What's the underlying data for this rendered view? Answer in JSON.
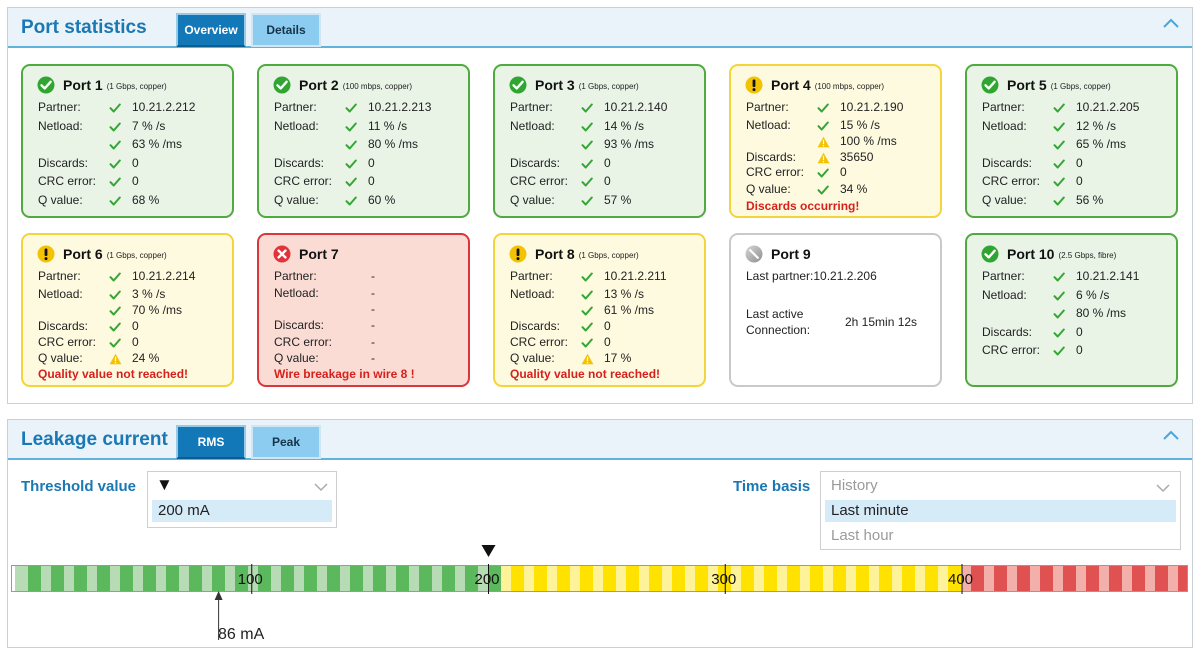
{
  "port_stats": {
    "title": "Port statistics",
    "tabs": [
      {
        "label": "Overview",
        "active": true
      },
      {
        "label": "Details",
        "active": false
      }
    ]
  },
  "labels": {
    "partner": "Partner:",
    "netload": "Netload:",
    "discards": "Discards:",
    "crc": "CRC error:",
    "q": "Q value:"
  },
  "ports": [
    {
      "name": "Port 1",
      "spec": "(1 Gbps, copper)",
      "status": "ok",
      "partner": "10.21.2.212",
      "netload_s": "7 % /s",
      "netload_ms": "63 % /ms",
      "discards": "0",
      "crc": "0",
      "q": "68 %"
    },
    {
      "name": "Port 2",
      "spec": "(100 mbps, copper)",
      "status": "ok",
      "partner": "10.21.2.213",
      "netload_s": "11 % /s",
      "netload_ms": "80 % /ms",
      "discards": "0",
      "crc": "0",
      "q": "60 %"
    },
    {
      "name": "Port 3",
      "spec": "(1 Gbps, copper)",
      "status": "ok",
      "partner": "10.21.2.140",
      "netload_s": "14 % /s",
      "netload_ms": "93 % /ms",
      "discards": "0",
      "crc": "0",
      "q": "57 %"
    },
    {
      "name": "Port 4",
      "spec": "(100 mbps, copper)",
      "status": "warn",
      "partner": "10.21.2.190",
      "netload_s": "15 % /s",
      "netload_ms": "100 % /ms",
      "discards": "35650",
      "crc": "0",
      "q": "34 %",
      "alert": "Discards occurring!"
    },
    {
      "name": "Port 5",
      "spec": "(1 Gbps, copper)",
      "status": "ok",
      "partner": "10.21.2.205",
      "netload_s": "12 % /s",
      "netload_ms": "65 % /ms",
      "discards": "0",
      "crc": "0",
      "q": "56 %"
    },
    {
      "name": "Port 6",
      "spec": "(1 Gbps, copper)",
      "status": "warn",
      "partner": "10.21.2.214",
      "netload_s": "3 % /s",
      "netload_ms": "70 % /ms",
      "discards": "0",
      "crc": "0",
      "q": "24 %",
      "alert": "Quality value not reached!"
    },
    {
      "name": "Port 7",
      "spec": "",
      "status": "err",
      "partner": "-",
      "netload_s": "-",
      "netload_ms": "-",
      "discards": "-",
      "crc": "-",
      "q": "-",
      "alert": "Wire breakage in wire 8 !"
    },
    {
      "name": "Port 8",
      "spec": "(1 Gbps, copper)",
      "status": "warn",
      "partner": "10.21.2.211",
      "netload_s": "13 % /s",
      "netload_ms": "61 % /ms",
      "discards": "0",
      "crc": "0",
      "q": "17 %",
      "alert": "Quality value not reached!"
    },
    {
      "name": "Port 9",
      "spec": "",
      "status": "off",
      "last_partner_label": "Last partner:",
      "last_partner": "10.21.2.206",
      "last_active_label_1": "Last active",
      "last_active_label_2": "Connection:",
      "last_active": "2h 15min 12s"
    },
    {
      "name": "Port 10",
      "spec": "(2.5 Gbps, fibre)",
      "status": "ok",
      "partner": "10.21.2.141",
      "netload_s": "6 % /s",
      "netload_ms": "80 % /ms",
      "discards": "0",
      "crc": "0"
    }
  ],
  "leakage": {
    "title": "Leakage current",
    "tabs": [
      {
        "label": "RMS",
        "active": true
      },
      {
        "label": "Peak",
        "active": false
      }
    ],
    "threshold_label": "Threshold value",
    "threshold_marker": "▼",
    "threshold_options": [
      "200 mA"
    ],
    "threshold_value_ma": 200,
    "time_basis_label": "Time basis",
    "time_basis_placeholder": "History",
    "time_basis_options": [
      "Last minute",
      "Last hour"
    ],
    "time_basis_selected": "Last minute",
    "current_value_ma": 86,
    "current_label": "86 mA",
    "scale_ticks": [
      "100",
      "200",
      "300",
      "400"
    ],
    "colors": {
      "green": "#5cb85c",
      "yellow": "#ffe200",
      "red": "#e05151"
    }
  }
}
